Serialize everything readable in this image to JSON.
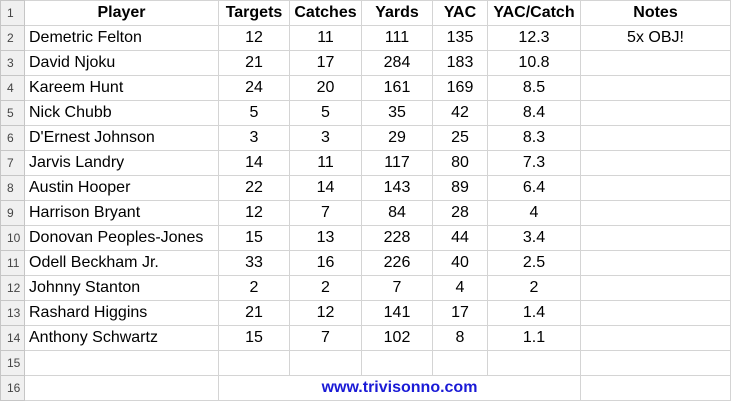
{
  "headers": [
    "Player",
    "Targets",
    "Catches",
    "Yards",
    "YAC",
    "YAC/Catch",
    "Notes"
  ],
  "rows": [
    {
      "num": "2",
      "player": "Demetric Felton",
      "targets": "12",
      "catches": "11",
      "yards": "111",
      "yac": "135",
      "ypc": "12.3",
      "note": "5x OBJ!"
    },
    {
      "num": "3",
      "player": "David Njoku",
      "targets": "21",
      "catches": "17",
      "yards": "284",
      "yac": "183",
      "ypc": "10.8",
      "note": ""
    },
    {
      "num": "4",
      "player": "Kareem Hunt",
      "targets": "24",
      "catches": "20",
      "yards": "161",
      "yac": "169",
      "ypc": "8.5",
      "note": ""
    },
    {
      "num": "5",
      "player": "Nick Chubb",
      "targets": "5",
      "catches": "5",
      "yards": "35",
      "yac": "42",
      "ypc": "8.4",
      "note": ""
    },
    {
      "num": "6",
      "player": "D'Ernest Johnson",
      "targets": "3",
      "catches": "3",
      "yards": "29",
      "yac": "25",
      "ypc": "8.3",
      "note": ""
    },
    {
      "num": "7",
      "player": "Jarvis Landry",
      "targets": "14",
      "catches": "11",
      "yards": "117",
      "yac": "80",
      "ypc": "7.3",
      "note": ""
    },
    {
      "num": "8",
      "player": "Austin Hooper",
      "targets": "22",
      "catches": "14",
      "yards": "143",
      "yac": "89",
      "ypc": "6.4",
      "note": ""
    },
    {
      "num": "9",
      "player": "Harrison Bryant",
      "targets": "12",
      "catches": "7",
      "yards": "84",
      "yac": "28",
      "ypc": "4",
      "note": ""
    },
    {
      "num": "10",
      "player": "Donovan Peoples-Jones",
      "targets": "15",
      "catches": "13",
      "yards": "228",
      "yac": "44",
      "ypc": "3.4",
      "note": ""
    },
    {
      "num": "11",
      "player": "Odell Beckham Jr.",
      "targets": "33",
      "catches": "16",
      "yards": "226",
      "yac": "40",
      "ypc": "2.5",
      "note": ""
    },
    {
      "num": "12",
      "player": "Johnny Stanton",
      "targets": "2",
      "catches": "2",
      "yards": "7",
      "yac": "4",
      "ypc": "2",
      "note": ""
    },
    {
      "num": "13",
      "player": "Rashard Higgins",
      "targets": "21",
      "catches": "12",
      "yards": "141",
      "yac": "17",
      "ypc": "1.4",
      "note": ""
    },
    {
      "num": "14",
      "player": "Anthony Schwartz",
      "targets": "15",
      "catches": "7",
      "yards": "102",
      "yac": "8",
      "ypc": "1.1",
      "note": ""
    }
  ],
  "row_numbers": {
    "header": "1",
    "empty": "15",
    "footer": "16"
  },
  "footer": {
    "website": "www.trivisonno.com"
  },
  "colors": {
    "link": "#1a1ad6",
    "grid": "#d4d4d4",
    "row_header_bg": "#f0f0f0"
  }
}
